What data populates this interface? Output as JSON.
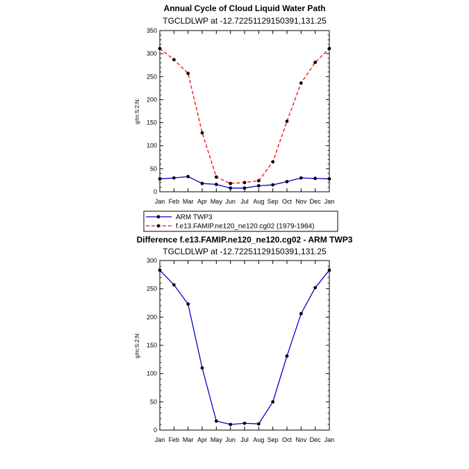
{
  "chart_data": [
    {
      "type": "line",
      "title": "Annual Cycle of Cloud Liquid Water Path",
      "subtitle": "TGCLDLWP at -12.72251129150391,131.25",
      "xlabel": "",
      "ylabel": "g/m:S:2:N:",
      "ylim": [
        0,
        350
      ],
      "yticks": [
        0,
        50,
        100,
        150,
        200,
        250,
        300,
        350
      ],
      "categories": [
        "Jan",
        "Feb",
        "Mar",
        "Apr",
        "May",
        "Jun",
        "Jul",
        "Aug",
        "Sep",
        "Oct",
        "Nov",
        "Dec",
        "Jan"
      ],
      "series": [
        {
          "name": "ARM TWP3",
          "color": "#0000cc",
          "dash": "solid",
          "values": [
            28,
            30,
            33,
            18,
            16,
            8,
            8,
            13,
            15,
            22,
            30,
            29,
            28
          ]
        },
        {
          "name": "f.e13.FAMIP.ne120_ne120.cg02 (1979-1984)",
          "color": "#ff0000",
          "dash": "dashed",
          "values": [
            311,
            287,
            257,
            128,
            32,
            18,
            20,
            24,
            65,
            153,
            236,
            281,
            311
          ]
        }
      ],
      "legend": "below"
    },
    {
      "type": "line",
      "title": "Difference f.e13.FAMIP.ne120_ne120.cg02 - ARM TWP3",
      "subtitle": "TGCLDLWP at -12.72251129150391,131.25",
      "xlabel": "",
      "ylabel": "g/m:S:2:N:",
      "ylim": [
        0,
        300
      ],
      "yticks": [
        0,
        50,
        100,
        150,
        200,
        250,
        300
      ],
      "categories": [
        "Jan",
        "Feb",
        "Mar",
        "Apr",
        "May",
        "Jun",
        "Jul",
        "Aug",
        "Sep",
        "Oct",
        "Nov",
        "Dec",
        "Jan"
      ],
      "series": [
        {
          "name": "Difference",
          "color": "#0000cc",
          "dash": "solid",
          "values": [
            283,
            257,
            223,
            110,
            16,
            10,
            12,
            11,
            50,
            131,
            206,
            252,
            283
          ]
        }
      ]
    }
  ]
}
